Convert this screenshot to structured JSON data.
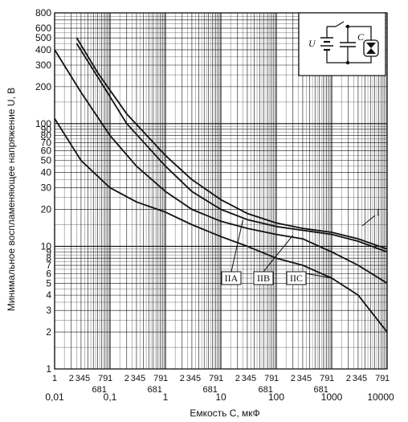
{
  "chart_data": {
    "type": "line",
    "xlabel": "Емкость C, мкФ",
    "ylabel": "Минимальное воспламеняющее напряжение U, В",
    "xscale": "log",
    "yscale": "log",
    "xlim": [
      0.01,
      10000
    ],
    "ylim": [
      1,
      800
    ],
    "grid": true,
    "y_ticks": [
      "1",
      "2",
      "3",
      "4",
      "5",
      "6",
      "7",
      "8",
      "9",
      "10",
      "20",
      "30",
      "40",
      "50",
      "60",
      "70",
      "80",
      "90",
      "100",
      "200",
      "300",
      "400",
      "500",
      "600",
      "800"
    ],
    "x_ticks": [
      "0,01",
      "0,1",
      "1",
      "10",
      "100",
      "1000",
      "10000"
    ],
    "x_minor_labels": [
      "1",
      "2",
      "345",
      "79",
      "681"
    ],
    "series": [
      {
        "name": "I",
        "x": [
          0.025,
          0.06,
          0.2,
          1,
          3,
          10,
          30,
          100,
          300,
          1000,
          3000,
          10000
        ],
        "y": [
          500,
          260,
          120,
          55,
          35,
          24,
          18.5,
          15.5,
          14,
          13,
          11.5,
          9.5
        ]
      },
      {
        "name": "IIA",
        "x": [
          0.025,
          0.06,
          0.2,
          1,
          3,
          10,
          30,
          100,
          300,
          1000,
          3000,
          10000
        ],
        "y": [
          450,
          240,
          100,
          45,
          28,
          20,
          16.5,
          14.5,
          13.5,
          12.5,
          11,
          9
        ]
      },
      {
        "name": "IIB",
        "x": [
          0.01,
          0.03,
          0.1,
          0.3,
          1,
          3,
          10,
          30,
          100,
          300,
          1000,
          3000,
          10000
        ],
        "y": [
          400,
          180,
          80,
          45,
          28,
          20,
          16,
          14,
          12.5,
          11.5,
          9,
          7,
          5
        ]
      },
      {
        "name": "IIC",
        "x": [
          0.01,
          0.03,
          0.1,
          0.3,
          1,
          3,
          10,
          30,
          100,
          300,
          1000,
          3000,
          10000
        ],
        "y": [
          110,
          50,
          30,
          23,
          19,
          15,
          12,
          10,
          8,
          7,
          5.5,
          4,
          2
        ]
      }
    ],
    "annotations": [
      "IIA",
      "IIB",
      "IIC",
      "I"
    ],
    "inset_labels": {
      "voltage": "U",
      "capacitor": "C"
    }
  }
}
